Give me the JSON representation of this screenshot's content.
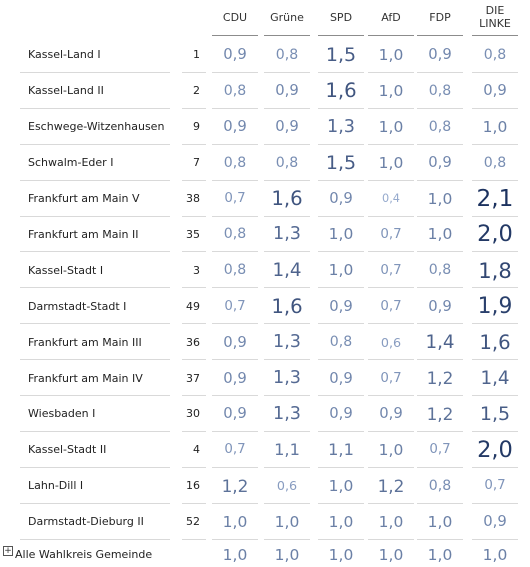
{
  "table": {
    "columns": [
      "CDU",
      "Grüne",
      "SPD",
      "AfD",
      "FDP",
      "DIE LINKE"
    ],
    "rows": [
      [
        "Kassel-Land I",
        1,
        "0,9",
        "0,8",
        "1,5",
        "1,0",
        "0,9",
        "0,8"
      ],
      [
        "Kassel-Land II",
        2,
        "0,8",
        "0,9",
        "1,6",
        "1,0",
        "0,8",
        "0,9"
      ],
      [
        "Eschwege-Witzenhausen",
        9,
        "0,9",
        "0,9",
        "1,3",
        "1,0",
        "0,8",
        "1,0"
      ],
      [
        "Schwalm-Eder I",
        7,
        "0,8",
        "0,8",
        "1,5",
        "1,0",
        "0,9",
        "0,8"
      ],
      [
        "Frankfurt am Main V",
        38,
        "0,7",
        "1,6",
        "0,9",
        "0,4",
        "1,0",
        "2,1"
      ],
      [
        "Frankfurt am Main II",
        35,
        "0,8",
        "1,3",
        "1,0",
        "0,7",
        "1,0",
        "2,0"
      ],
      [
        "Kassel-Stadt I",
        3,
        "0,8",
        "1,4",
        "1,0",
        "0,7",
        "0,8",
        "1,8"
      ],
      [
        "Darmstadt-Stadt I",
        49,
        "0,7",
        "1,6",
        "0,9",
        "0,7",
        "0,9",
        "1,9"
      ],
      [
        "Frankfurt am Main III",
        36,
        "0,9",
        "1,3",
        "0,8",
        "0,6",
        "1,4",
        "1,6"
      ],
      [
        "Frankfurt am Main IV",
        37,
        "0,9",
        "1,3",
        "0,9",
        "0,7",
        "1,2",
        "1,4"
      ],
      [
        "Wiesbaden I",
        30,
        "0,9",
        "1,3",
        "0,9",
        "0,9",
        "1,2",
        "1,5"
      ],
      [
        "Kassel-Stadt II",
        4,
        "0,7",
        "1,1",
        "1,1",
        "1,0",
        "0,7",
        "2,0"
      ],
      [
        "Lahn-Dill I",
        16,
        "1,2",
        "0,6",
        "1,0",
        "1,2",
        "0,8",
        "0,7"
      ],
      [
        "Darmstadt-Dieburg II",
        52,
        "1,0",
        "1,0",
        "1,0",
        "1,0",
        "1,0",
        "0,9"
      ]
    ],
    "total": {
      "label": "Alle Wahlkreis Gemeinde",
      "values": [
        "1,0",
        "1,0",
        "1,0",
        "1,0",
        "1,0",
        "1,0"
      ]
    }
  }
}
